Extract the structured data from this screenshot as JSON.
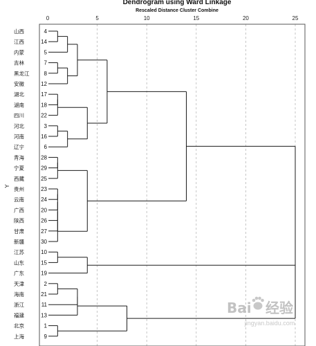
{
  "chart_data": {
    "type": "dendrogram",
    "title": "Dendrogram using Ward Linkage",
    "subtitle": "Rescaled Distance Cluster Combine",
    "ylabel": "Y",
    "xlim": [
      0,
      25
    ],
    "xticks": [
      0,
      5,
      10,
      15,
      20,
      25
    ],
    "grid_x": true,
    "leaves": [
      {
        "name": "山西",
        "num": "4"
      },
      {
        "name": "江西",
        "num": "14"
      },
      {
        "name": "内蒙",
        "num": "5"
      },
      {
        "name": "吉林",
        "num": "7"
      },
      {
        "name": "黑龙江",
        "num": "8"
      },
      {
        "name": "安徽",
        "num": "12"
      },
      {
        "name": "湖北",
        "num": "17"
      },
      {
        "name": "湖南",
        "num": "18"
      },
      {
        "name": "四川",
        "num": "22"
      },
      {
        "name": "河北",
        "num": "3"
      },
      {
        "name": "河南",
        "num": "16"
      },
      {
        "name": "辽宁",
        "num": "6"
      },
      {
        "name": "青海",
        "num": "28"
      },
      {
        "name": "宁夏",
        "num": "29"
      },
      {
        "name": "西藏",
        "num": "25"
      },
      {
        "name": "贵州",
        "num": "23"
      },
      {
        "name": "云南",
        "num": "24"
      },
      {
        "name": "广西",
        "num": "20"
      },
      {
        "name": "陕西",
        "num": "26"
      },
      {
        "name": "甘肃",
        "num": "27"
      },
      {
        "name": "新疆",
        "num": "30"
      },
      {
        "name": "江苏",
        "num": "10"
      },
      {
        "name": "山东",
        "num": "15"
      },
      {
        "name": "广东",
        "num": "19"
      },
      {
        "name": "天津",
        "num": "2"
      },
      {
        "name": "海南",
        "num": "21"
      },
      {
        "name": "浙江",
        "num": "11"
      },
      {
        "name": "福建",
        "num": "13"
      },
      {
        "name": "北京",
        "num": "1"
      },
      {
        "name": "上海",
        "num": "9"
      }
    ],
    "merges": [
      {
        "a": "L0",
        "b": "L1",
        "d": 1.0
      },
      {
        "a": "M0",
        "b": "L2",
        "d": 2.0
      },
      {
        "a": "L3",
        "b": "L4",
        "d": 1.0
      },
      {
        "a": "M2",
        "b": "L5",
        "d": 2.0
      },
      {
        "a": "M1",
        "b": "M3",
        "d": 3.0
      },
      {
        "a": "L6",
        "b": "L7",
        "d": 1.0
      },
      {
        "a": "M5",
        "b": "L8",
        "d": 1.0
      },
      {
        "a": "L9",
        "b": "L10",
        "d": 1.0
      },
      {
        "a": "M7",
        "b": "L11",
        "d": 2.0
      },
      {
        "a": "M6",
        "b": "M8",
        "d": 4.0
      },
      {
        "a": "M4",
        "b": "M9",
        "d": 6.0
      },
      {
        "a": "L12",
        "b": "L13",
        "d": 1.0
      },
      {
        "a": "M11",
        "b": "L14",
        "d": 1.0
      },
      {
        "a": "L15",
        "b": "L16",
        "d": 1.0
      },
      {
        "a": "M13",
        "b": "L17",
        "d": 1.0
      },
      {
        "a": "M14",
        "b": "L18",
        "d": 1.0
      },
      {
        "a": "M15",
        "b": "L19",
        "d": 1.0
      },
      {
        "a": "M16",
        "b": "L20",
        "d": 1.0
      },
      {
        "a": "M12",
        "b": "M17",
        "d": 4.0
      },
      {
        "a": "M10",
        "b": "M18",
        "d": 14.0
      },
      {
        "a": "L21",
        "b": "L22",
        "d": 1.0
      },
      {
        "a": "M20",
        "b": "L23",
        "d": 4.0
      },
      {
        "a": "L24",
        "b": "L25",
        "d": 1.0
      },
      {
        "a": "M22",
        "b": "L26",
        "d": 3.0
      },
      {
        "a": "M23",
        "b": "L27",
        "d": 3.0
      },
      {
        "a": "L28",
        "b": "L29",
        "d": 1.0
      },
      {
        "a": "M24",
        "b": "M25",
        "d": 8.0
      },
      {
        "a": "M21",
        "b": "M26",
        "d": 25.0
      },
      {
        "a": "M19",
        "b": "M27",
        "d": 25.0
      }
    ]
  },
  "watermark": {
    "brand": "Bai",
    "brand_tail": "经验",
    "url": "jingyan.baidu.com"
  },
  "colors": {
    "frame": "#555555",
    "grid": "#b8b8b8",
    "tree": "#1a1a1a"
  }
}
